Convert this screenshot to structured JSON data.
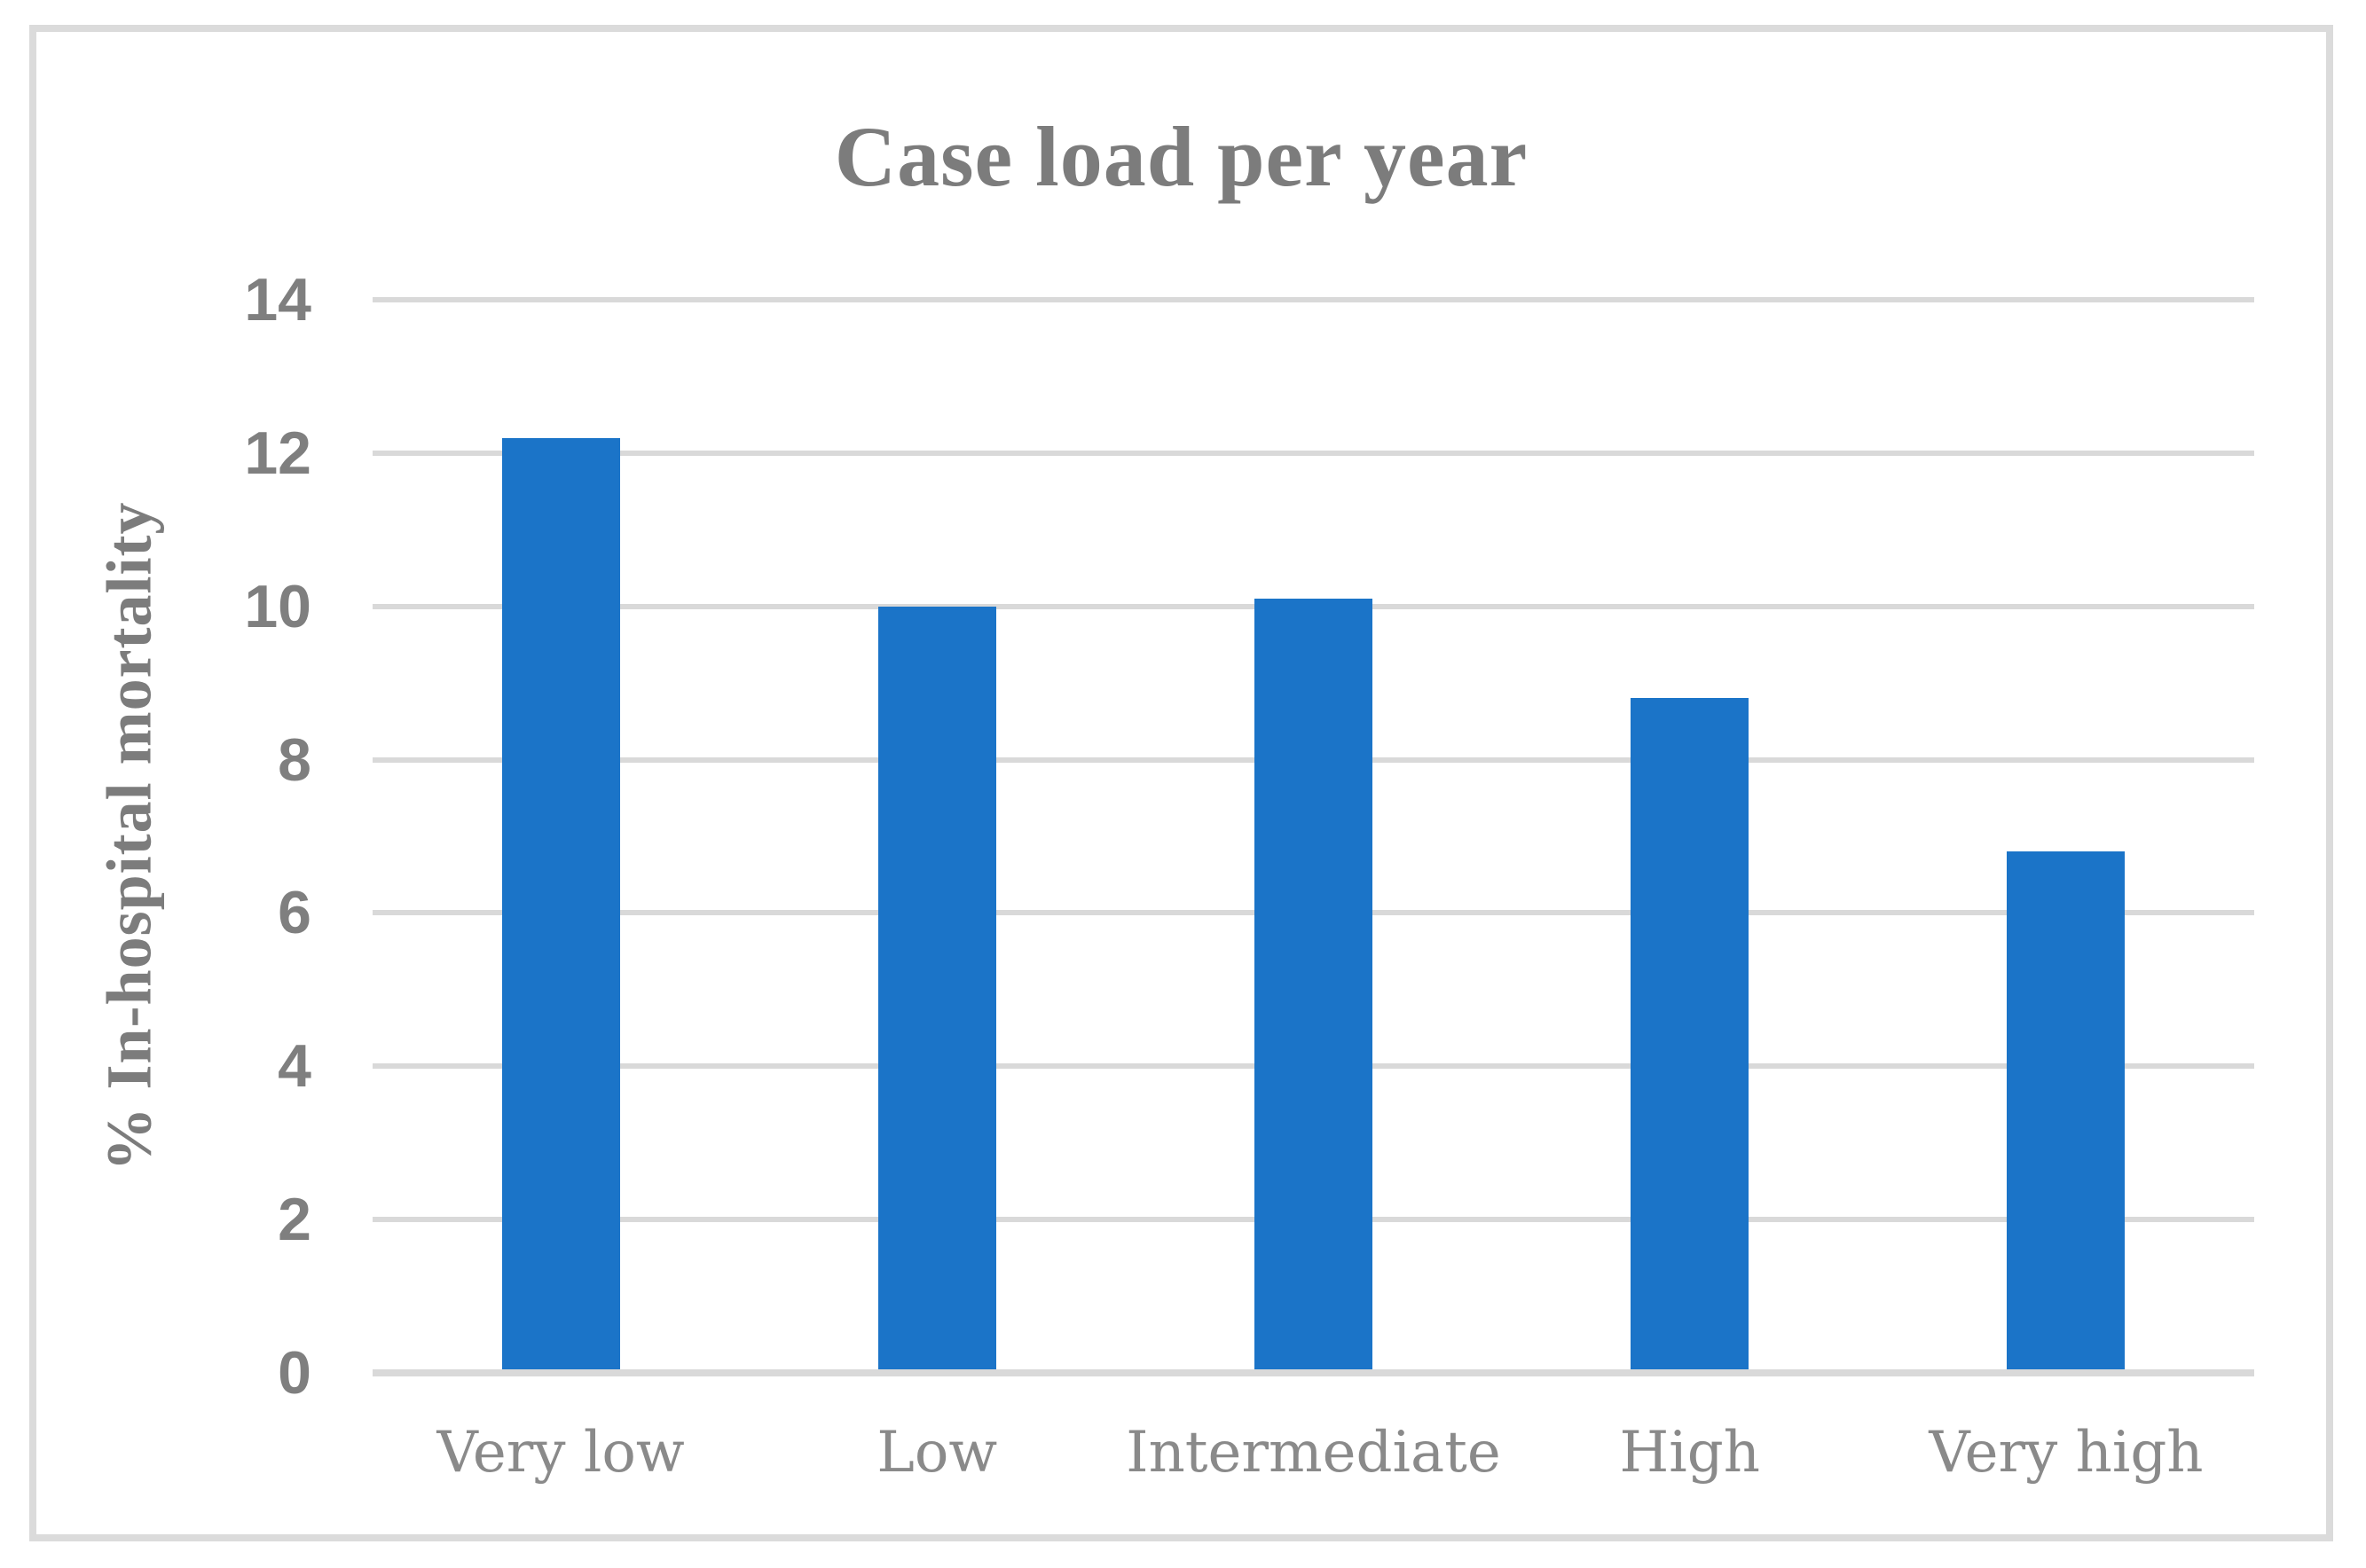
{
  "chart_data": {
    "type": "bar",
    "title": "Case load per year",
    "xlabel": "",
    "ylabel": "% In-hospital mortality",
    "categories": [
      "Very low",
      "Low",
      "Intermediate",
      "High",
      "Very high"
    ],
    "values": [
      12.2,
      10.0,
      10.1,
      8.8,
      6.8
    ],
    "ylim": [
      0,
      14
    ],
    "yticks": [
      0,
      2,
      4,
      6,
      8,
      10,
      12,
      14
    ],
    "grid": true,
    "legend": "none",
    "colors": {
      "bar": "#1B74C8",
      "gridline": "#D9D9D9",
      "axis_line": "#D9D9D9",
      "frame": "#DBDBDB",
      "title_text": "#7C7C7C",
      "tick_text": "#7F7F7F",
      "category_text": "#8A8A8A"
    }
  }
}
